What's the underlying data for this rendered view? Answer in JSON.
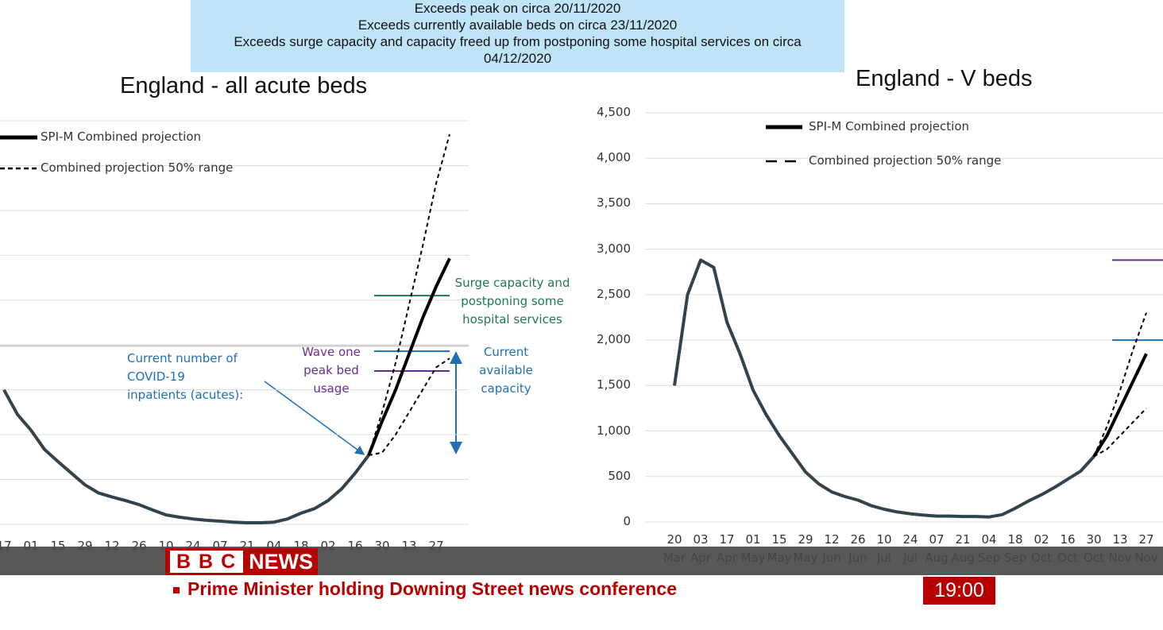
{
  "banner": {
    "lines": [
      "Exceeds peak on circa 20/11/2020",
      "Exceeds currently available beds on circa 23/11/2020",
      "Exceeds surge capacity and capacity freed up from postponing some hospital services on circa",
      "04/12/2020"
    ]
  },
  "chart_data": [
    {
      "type": "line",
      "title": "England - all acute beds",
      "categories": [
        "17",
        null,
        "01",
        null,
        "15",
        null,
        "29",
        null,
        "12",
        null,
        "26",
        null,
        "10",
        null,
        "24",
        null,
        "07",
        null,
        "21",
        null,
        "04",
        null,
        "18",
        null,
        "02",
        null,
        "16",
        null,
        "30",
        null,
        "13",
        null,
        "27",
        null
      ],
      "ylim": [
        0,
        9
      ],
      "yticks": [
        0,
        1,
        2,
        3,
        4,
        5,
        6,
        7,
        8,
        9
      ],
      "grid": true,
      "series": [
        {
          "color": "#33434d",
          "values": [
            3.0,
            2.45,
            2.1,
            1.67,
            1.4,
            1.14,
            0.88,
            0.7,
            0.61,
            0.53,
            0.44,
            0.32,
            0.21,
            0.16,
            0.12,
            0.09,
            0.07,
            0.05,
            0.035,
            0.035,
            0.05,
            0.12,
            0.25,
            0.35,
            0.53,
            0.79,
            1.14,
            1.54,
            null,
            null,
            null,
            null,
            null,
            null
          ]
        },
        {
          "name": "SPI-M Combined projection",
          "color": "#000000",
          "values": [
            null,
            null,
            null,
            null,
            null,
            null,
            null,
            null,
            null,
            null,
            null,
            null,
            null,
            null,
            null,
            null,
            null,
            null,
            null,
            null,
            null,
            null,
            null,
            null,
            null,
            null,
            null,
            1.54,
            2.3,
            3.0,
            3.8,
            4.6,
            5.3,
            5.93
          ]
        },
        {
          "name": "Combined projection 50% range",
          "color": "#000000",
          "dashed": true,
          "values": [
            null,
            null,
            null,
            null,
            null,
            null,
            null,
            null,
            null,
            null,
            null,
            null,
            null,
            null,
            null,
            null,
            null,
            null,
            null,
            null,
            null,
            null,
            null,
            null,
            null,
            null,
            null,
            1.54,
            2.5,
            3.6,
            4.9,
            6.2,
            7.6,
            8.7
          ],
          "low": [
            null,
            null,
            null,
            null,
            null,
            null,
            null,
            null,
            null,
            null,
            null,
            null,
            null,
            null,
            null,
            null,
            null,
            null,
            null,
            null,
            null,
            null,
            null,
            null,
            null,
            null,
            null,
            1.54,
            1.6,
            2.0,
            2.5,
            3.0,
            3.5,
            3.7
          ]
        }
      ],
      "reference_lines": [
        {
          "value": 5.1,
          "color": "#1e7a4c",
          "label": "Surge capacity and postponing some hospital services"
        },
        {
          "value": 3.86,
          "color": "#1f6fb5",
          "label": "Current available capacity"
        },
        {
          "value": 3.42,
          "color": "#6a2c91",
          "label": "Wave one peak bed usage"
        }
      ],
      "annotation": "Current number of COVID-19 inpatients (acutes):"
    },
    {
      "type": "line",
      "title": "England - V beds",
      "categories": [
        "20 Mar",
        null,
        "03 Apr",
        null,
        "17 Apr",
        null,
        "01 May",
        null,
        "15 May",
        null,
        "29 May",
        null,
        "12 Jun",
        null,
        "26 Jun",
        null,
        "10 Jul",
        null,
        "24 Jul",
        null,
        "07 Aug",
        null,
        "21 Aug",
        null,
        "04 Sep",
        null,
        "18 Sep",
        null,
        "02 Oct",
        null,
        "16 Oct",
        null,
        "30 Oct",
        null,
        "13 Nov",
        null,
        "27 Nov"
      ],
      "ylim": [
        0,
        4500
      ],
      "yticks": [
        0,
        500,
        {
          "value": 1000,
          "label": "1,000"
        },
        {
          "value": 1500,
          "label": "1,500"
        },
        {
          "value": 2000,
          "label": "2,000"
        },
        {
          "value": 2500,
          "label": "2,500"
        },
        {
          "value": 3000,
          "label": "3,000"
        },
        {
          "value": 3500,
          "label": "3,500"
        },
        {
          "value": 4000,
          "label": "4,000"
        },
        {
          "value": 4500,
          "label": "4,500"
        }
      ],
      "grid": true,
      "series": [
        {
          "color": "#33434d",
          "values": [
            1500,
            2500,
            2880,
            2800,
            2200,
            1850,
            1450,
            1180,
            950,
            750,
            550,
            420,
            330,
            280,
            240,
            180,
            140,
            110,
            90,
            75,
            65,
            65,
            60,
            60,
            55,
            80,
            150,
            230,
            300,
            380,
            470,
            560,
            720,
            null,
            null,
            null,
            null
          ]
        },
        {
          "name": "SPI-M Combined projection",
          "color": "#000000",
          "values": [
            null,
            null,
            null,
            null,
            null,
            null,
            null,
            null,
            null,
            null,
            null,
            null,
            null,
            null,
            null,
            null,
            null,
            null,
            null,
            null,
            null,
            null,
            null,
            null,
            null,
            null,
            null,
            null,
            null,
            null,
            null,
            null,
            720,
            950,
            1250,
            1550,
            1850
          ]
        },
        {
          "name": "Combined projection 50% range",
          "color": "#000000",
          "dashed": true,
          "values": [
            null,
            null,
            null,
            null,
            null,
            null,
            null,
            null,
            null,
            null,
            null,
            null,
            null,
            null,
            null,
            null,
            null,
            null,
            null,
            null,
            null,
            null,
            null,
            null,
            null,
            null,
            null,
            null,
            null,
            null,
            null,
            null,
            720,
            1050,
            1450,
            1900,
            2300
          ],
          "low": [
            null,
            null,
            null,
            null,
            null,
            null,
            null,
            null,
            null,
            null,
            null,
            null,
            null,
            null,
            null,
            null,
            null,
            null,
            null,
            null,
            null,
            null,
            null,
            null,
            null,
            null,
            null,
            null,
            null,
            null,
            null,
            null,
            720,
            800,
            950,
            1100,
            1250
          ]
        }
      ],
      "reference_lines": [
        {
          "value": 2880,
          "color": "#6a2c91"
        },
        {
          "value": 2000,
          "color": "#1f6fb5"
        }
      ]
    }
  ],
  "ticker": {
    "brand": "BBC",
    "channel": "NEWS",
    "headline": "Prime Minister holding Downing Street news conference",
    "time": "19:00"
  }
}
